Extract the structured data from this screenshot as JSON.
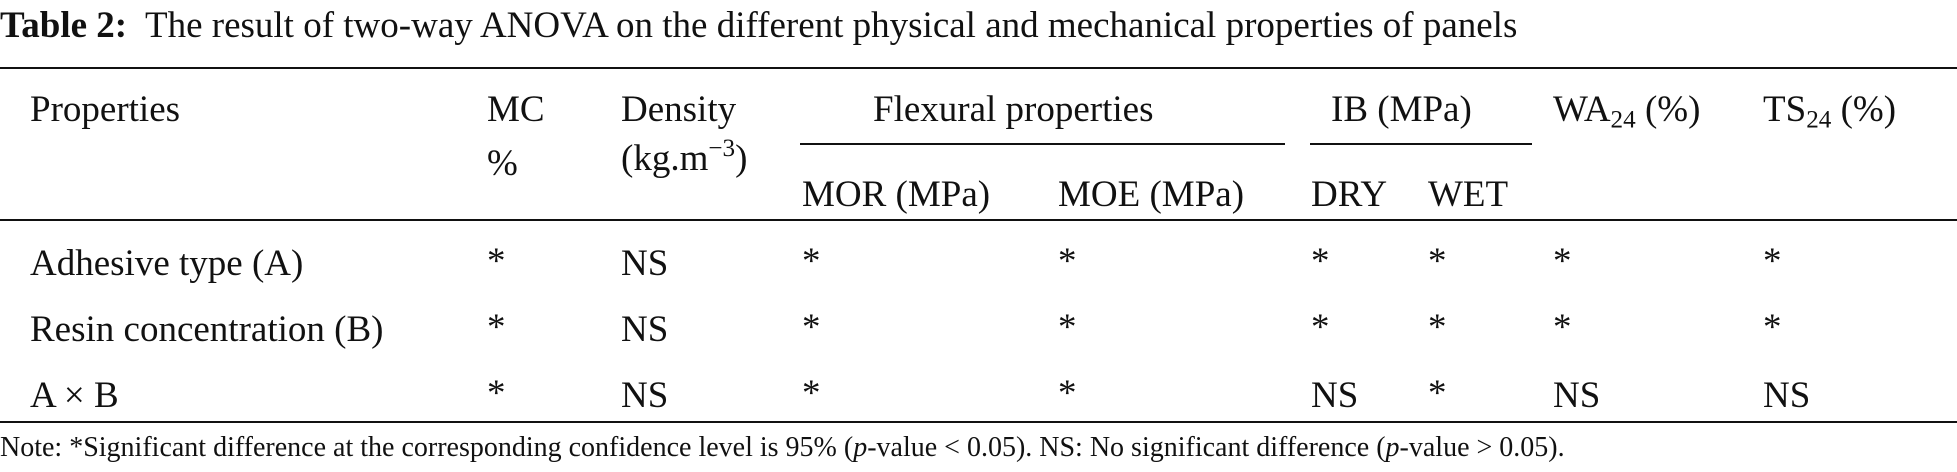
{
  "caption": {
    "label": "Table 2:",
    "text": "The result of two-way ANOVA on the different physical and mechanical properties of panels"
  },
  "table": {
    "headers": {
      "properties": "Properties",
      "mc_line1": "MC",
      "mc_line2": "%",
      "density_line1": "Density",
      "density_unit_base": "(kg.m",
      "density_unit_exp": "−3",
      "density_unit_close": ")",
      "flexural": "Flexural properties",
      "mor": "MOR (MPa)",
      "moe": "MOE (MPa)",
      "ib": "IB (MPa)",
      "ib_dry": "DRY",
      "ib_wet": "WET",
      "wa_base": "WA",
      "wa_sub": "24",
      "wa_unit": " (%)",
      "ts_base": "TS",
      "ts_sub": "24",
      "ts_unit": " (%)"
    },
    "rows": [
      {
        "property": "Adhesive type (A)",
        "mc": "*",
        "density": "NS",
        "mor": "*",
        "moe": "*",
        "ib_dry": "*",
        "ib_wet": "*",
        "wa": "*",
        "ts": "*"
      },
      {
        "property": "Resin concentration (B)",
        "mc": "*",
        "density": "NS",
        "mor": "*",
        "moe": "*",
        "ib_dry": "*",
        "ib_wet": "*",
        "wa": "*",
        "ts": "*"
      },
      {
        "property": "A × B",
        "mc": "*",
        "density": "NS",
        "mor": "*",
        "moe": "*",
        "ib_dry": "NS",
        "ib_wet": "*",
        "wa": "NS",
        "ts": "NS"
      }
    ]
  },
  "note": {
    "part1": "Note: *Significant difference at the corresponding confidence level is 95% (",
    "p1": "p",
    "part2": "-value < 0.05). NS: No significant difference (",
    "p2": "p",
    "part3": "-value > 0.05)."
  }
}
